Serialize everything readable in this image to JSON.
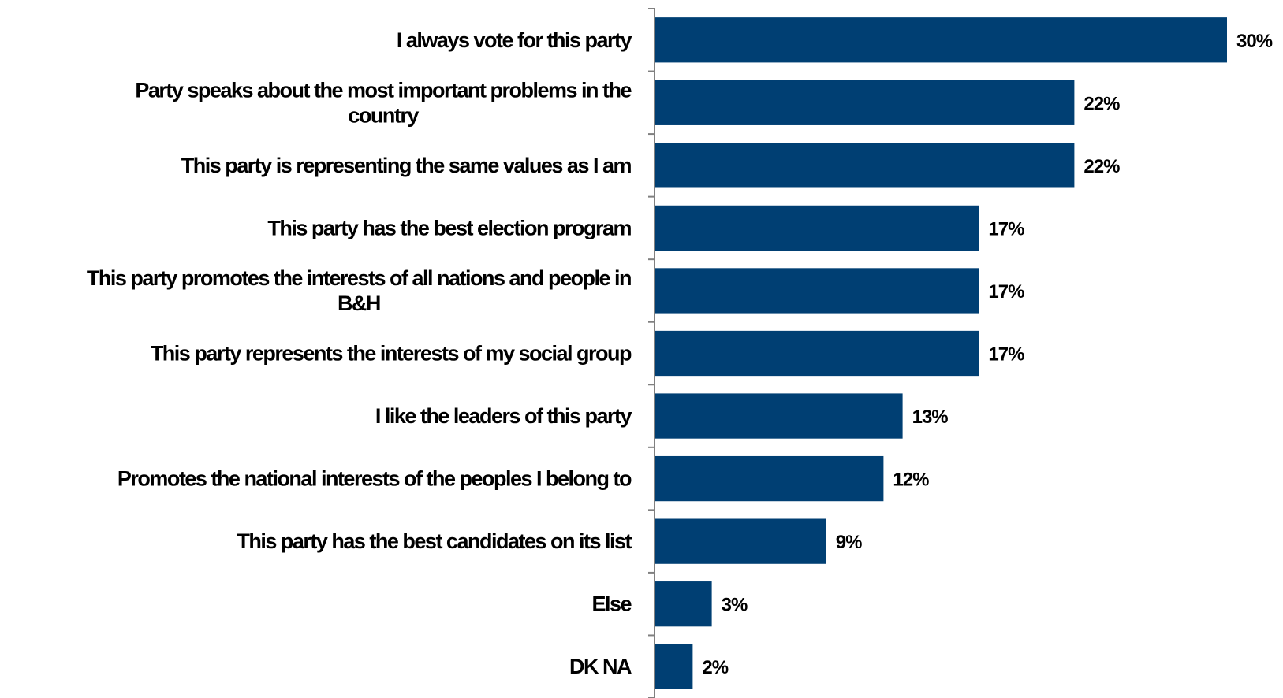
{
  "chart_data": {
    "type": "bar",
    "orientation": "horizontal",
    "categories": [
      "I always vote for this party",
      "Party speaks about the most important problems in the country",
      "This party is representing the same values as I am",
      "This party has the best election program",
      "This party promotes the interests of all nations and people in B&H",
      "This party represents the interests of my social group",
      "I like the leaders of this party",
      "Promotes the national interests of the peoples I belong to",
      "This party has the best candidates on its list",
      "Else",
      "DK NA"
    ],
    "category_label_lines": [
      [
        "I always vote for this party"
      ],
      [
        "Party speaks about the most important problems in the",
        "country"
      ],
      [
        "This party is representing the same values as I am"
      ],
      [
        "This party has the best election program"
      ],
      [
        "This party promotes the interests of all nations and people in",
        "B&H"
      ],
      [
        "This party represents the interests of my social group"
      ],
      [
        "I like the leaders of this party"
      ],
      [
        "Promotes the national interests of the peoples I belong to"
      ],
      [
        "This party has the best candidates on its list"
      ],
      [
        "Else"
      ],
      [
        "DK NA"
      ]
    ],
    "values": [
      30,
      22,
      22,
      17,
      17,
      17,
      13,
      12,
      9,
      3,
      2
    ],
    "value_labels": [
      "30%",
      "22%",
      "22%",
      "17%",
      "17%",
      "17%",
      "13%",
      "12%",
      "9%",
      "3%",
      "2%"
    ],
    "unit": "%",
    "xlim": [
      0,
      30
    ],
    "grid": false,
    "legend": "none",
    "bar_color": "#003f73",
    "axis_color": "#808080"
  }
}
